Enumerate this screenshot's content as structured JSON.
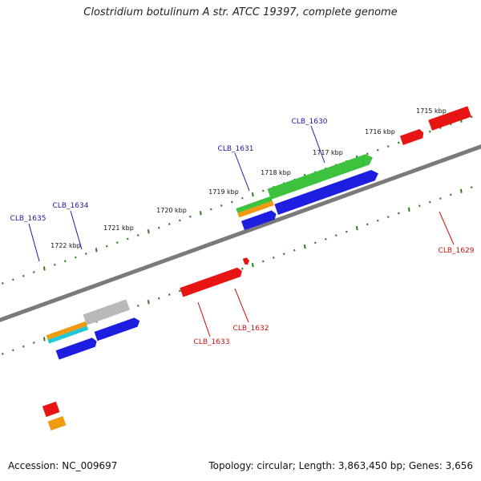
{
  "title": "Clostridium botulinum A str. ATCC 19397, complete genome",
  "footer": {
    "accession": "Accession: NC_009697",
    "summary": "Topology: circular; Length: 3,863,450 bp; Genes: 3,656"
  },
  "colors": {
    "backbone": "#7a7a7a",
    "tick": "#2f7d1e",
    "plus_label": "#1a1aa6",
    "minus_label": "#cc1111",
    "red": "#e81414",
    "blue": "#1e1ee0",
    "green": "#3cc23c",
    "orange": "#f09a12",
    "cyan": "#22c8d8",
    "gray": "#b9b9b9"
  },
  "scale_labels": [
    "1715 kbp",
    "1716 kbp",
    "1717 kbp",
    "1718 kbp",
    "1719 kbp",
    "1720 kbp",
    "1721 kbp",
    "1722 kbp"
  ],
  "gene_labels_top": [
    "CLB_1630",
    "CLB_1631",
    "CLB_1634",
    "CLB_1635"
  ],
  "gene_labels_bottom": [
    "CLB_1629",
    "CLB_1632",
    "CLB_1633"
  ]
}
